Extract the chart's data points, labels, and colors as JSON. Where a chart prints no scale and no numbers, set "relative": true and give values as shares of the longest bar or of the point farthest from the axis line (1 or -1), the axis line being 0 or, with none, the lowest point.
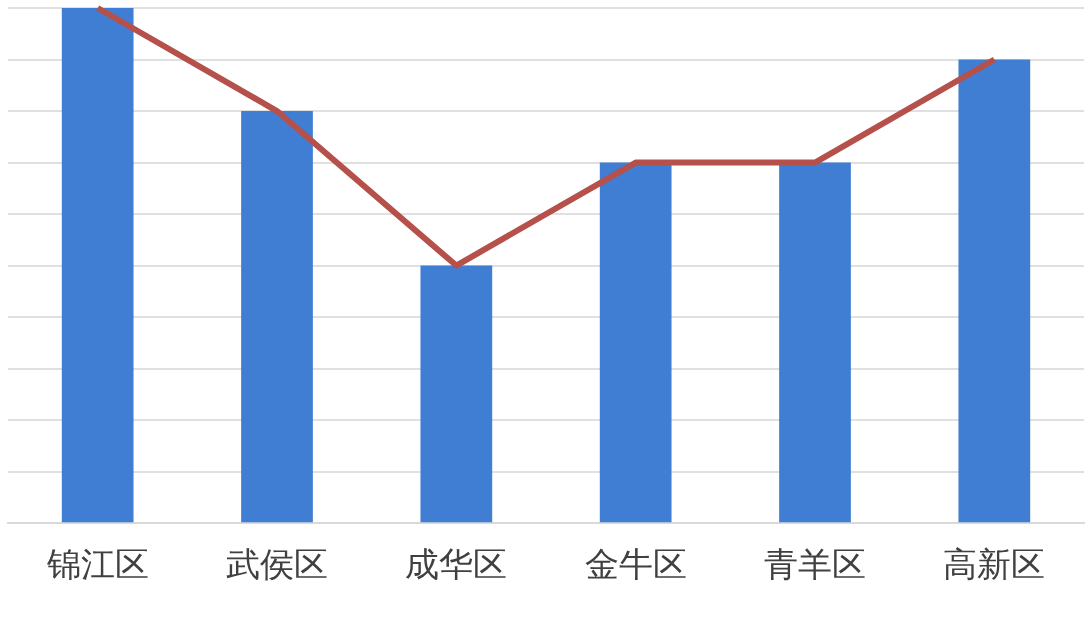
{
  "chart_data": {
    "type": "bar",
    "relative": true,
    "grid": "y",
    "legend": false,
    "categories": [
      "锦江区",
      "武侯区",
      "成华区",
      "金牛区",
      "青羊区",
      "高新区"
    ],
    "series": [
      {
        "color": "#3f7ed3",
        "values": [
          1,
          0.8,
          0.5,
          0.7,
          0.7,
          0.9
        ]
      },
      {
        "type": "line",
        "color": "#b5504b",
        "marker": "none",
        "line_style": "solid",
        "values": [
          1,
          0.8,
          0.5,
          0.7,
          0.7,
          0.9
        ]
      }
    ]
  }
}
